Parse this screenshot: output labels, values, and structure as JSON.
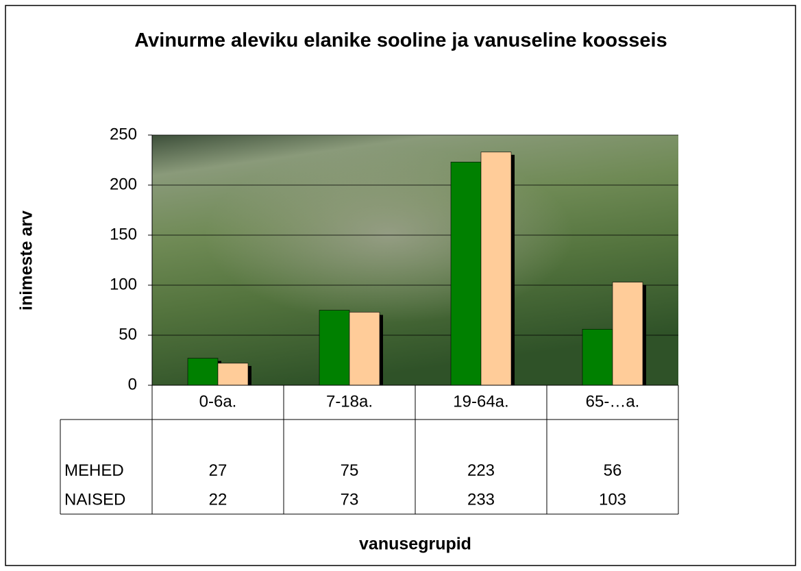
{
  "chart_data": {
    "type": "bar",
    "title": "Avinurme aleviku elanike sooline ja vanuseline koosseis",
    "x_label": "vanusegrupid",
    "y_label": "inimeste arv",
    "categories": [
      "0-6a.",
      "7-18a.",
      "19-64a.",
      "65-…a."
    ],
    "series": [
      {
        "name": "MEHED",
        "color": "#008000",
        "values": [
          27,
          75,
          223,
          56
        ]
      },
      {
        "name": "NAISED",
        "color": "#ffcc99",
        "values": [
          22,
          73,
          233,
          103
        ]
      }
    ],
    "ylim": [
      0,
      250
    ],
    "yticks": [
      0,
      50,
      100,
      150,
      200,
      250
    ],
    "grid": true,
    "data_table": true
  }
}
